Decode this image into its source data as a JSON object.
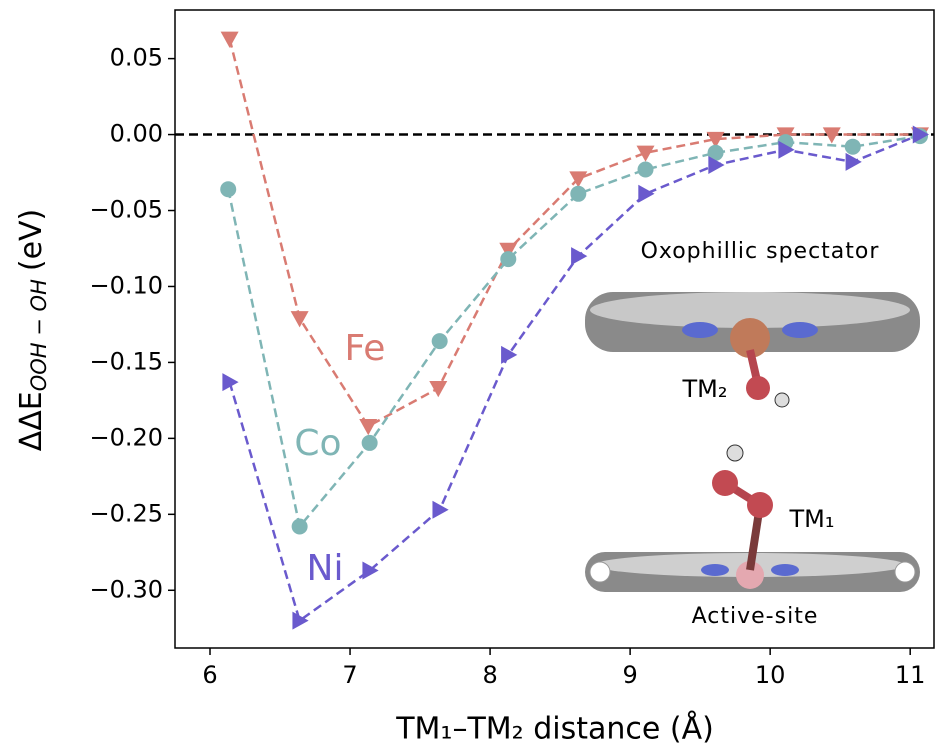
{
  "chart_data": {
    "type": "line",
    "xlabel": "TM₁–TM₂ distance (Å)",
    "ylabel": {
      "main": "ΔΔE",
      "sub": "OOH − OH",
      "unit": "(eV)"
    },
    "xlim": [
      5.75,
      11.17
    ],
    "ylim": [
      -0.338,
      0.082
    ],
    "xticks": [
      6,
      7,
      8,
      9,
      10,
      11
    ],
    "yticks": [
      0.05,
      {
        "value": 0,
        "label": "0.00"
      },
      {
        "value": -0.05,
        "label": "−0.05"
      },
      {
        "value": -0.1,
        "label": "−0.10"
      },
      {
        "value": -0.15,
        "label": "−0.15"
      },
      {
        "value": -0.2,
        "label": "−0.20"
      },
      {
        "value": -0.25,
        "label": "−0.25"
      },
      {
        "value": -0.3,
        "label": "−0.30"
      }
    ],
    "reference_line": 0,
    "series": [
      {
        "name": "Fe",
        "color": "#d97b72",
        "marker": "triangle-down",
        "x": [
          6.14,
          6.64,
          7.13,
          7.63,
          8.13,
          8.63,
          9.11,
          9.61,
          10.11,
          10.44,
          11.07
        ],
        "values": [
          0.063,
          -0.121,
          -0.192,
          -0.167,
          -0.076,
          -0.029,
          -0.012,
          -0.003,
          0.0,
          0.0,
          0.0
        ]
      },
      {
        "name": "Co",
        "color": "#7fb5b5",
        "marker": "circle",
        "x": [
          6.13,
          6.64,
          7.14,
          7.64,
          8.13,
          8.63,
          9.11,
          9.61,
          10.11,
          10.59,
          11.07
        ],
        "values": [
          -0.036,
          -0.258,
          -0.203,
          -0.136,
          -0.082,
          -0.039,
          -0.023,
          -0.012,
          -0.005,
          -0.008,
          -0.001
        ]
      },
      {
        "name": "Ni",
        "color": "#6a5acd",
        "marker": "triangle-right",
        "x": [
          6.14,
          6.64,
          7.14,
          7.64,
          8.13,
          8.63,
          9.11,
          9.61,
          10.11,
          10.59,
          11.07
        ],
        "values": [
          -0.163,
          -0.32,
          -0.287,
          -0.247,
          -0.145,
          -0.08,
          -0.039,
          -0.02,
          -0.01,
          -0.018,
          0.0
        ]
      }
    ],
    "annotations": {
      "spectator": "Oxophillic spectator",
      "tm2": "TM₂",
      "tm1": "TM₁",
      "active": "Active-site"
    }
  }
}
